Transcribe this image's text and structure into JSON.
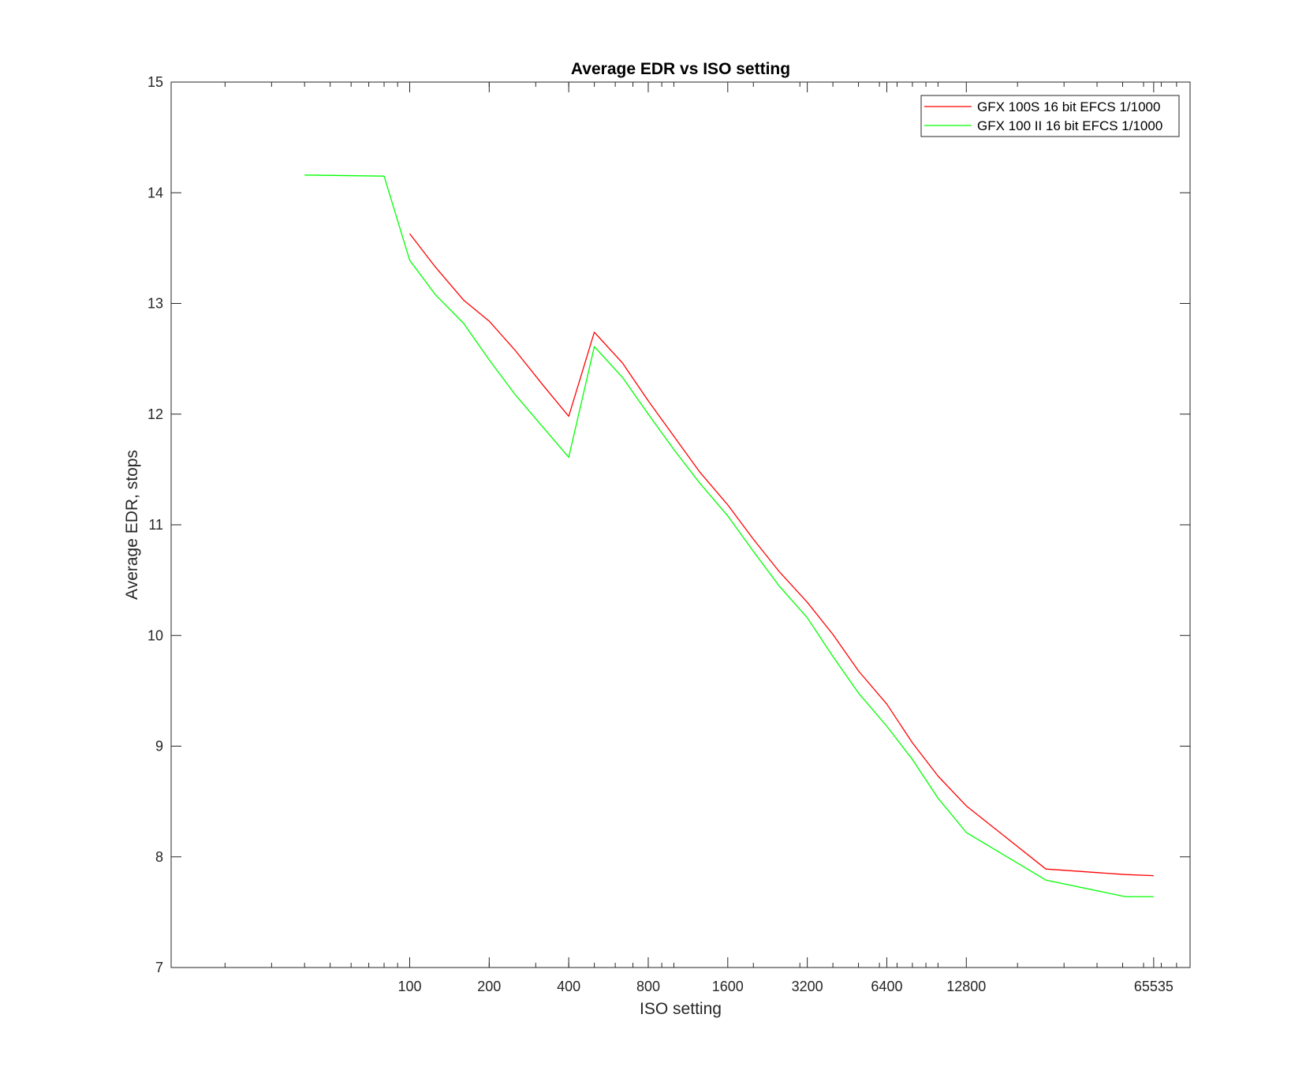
{
  "chart_data": {
    "type": "line",
    "title": "Average EDR vs ISO setting",
    "xlabel": "ISO setting",
    "ylabel": "Average EDR, stops",
    "x_scale": "log2",
    "xlim": [
      12.5,
      90000
    ],
    "ylim": [
      7,
      15
    ],
    "x_ticks": [
      100,
      200,
      400,
      800,
      1600,
      3200,
      6400,
      12800,
      65535
    ],
    "y_ticks": [
      7,
      8,
      9,
      10,
      11,
      12,
      13,
      14,
      15
    ],
    "grid": false,
    "legend_position": "top-right",
    "series": [
      {
        "name": "GFX 100S 16 bit EFCS 1/1000",
        "color": "#ff0000",
        "x": [
          100,
          125,
          160,
          200,
          250,
          320,
          400,
          500,
          640,
          800,
          1000,
          1250,
          1600,
          2000,
          2500,
          3200,
          4000,
          5000,
          6400,
          8000,
          10000,
          12800,
          25600,
          51200,
          65535
        ],
        "y": [
          13.63,
          13.33,
          13.03,
          12.84,
          12.58,
          12.26,
          11.98,
          12.74,
          12.46,
          12.12,
          11.8,
          11.48,
          11.18,
          10.87,
          10.58,
          10.3,
          10.01,
          9.68,
          9.38,
          9.03,
          8.73,
          8.46,
          7.89,
          7.84,
          7.83
        ]
      },
      {
        "name": "GFX 100 II 16 bit EFCS 1/1000",
        "color": "#00ff00",
        "x": [
          40,
          80,
          100,
          125,
          160,
          200,
          250,
          320,
          400,
          500,
          640,
          800,
          1000,
          1250,
          1600,
          2000,
          2500,
          3200,
          4000,
          5000,
          6400,
          8000,
          10000,
          12800,
          25600,
          51200,
          65535
        ],
        "y": [
          14.16,
          14.15,
          13.39,
          13.08,
          12.82,
          12.49,
          12.18,
          11.88,
          11.61,
          12.61,
          12.33,
          12.0,
          11.68,
          11.38,
          11.08,
          10.76,
          10.45,
          10.16,
          9.81,
          9.48,
          9.18,
          8.88,
          8.53,
          8.22,
          7.79,
          7.64,
          7.64
        ]
      }
    ]
  }
}
